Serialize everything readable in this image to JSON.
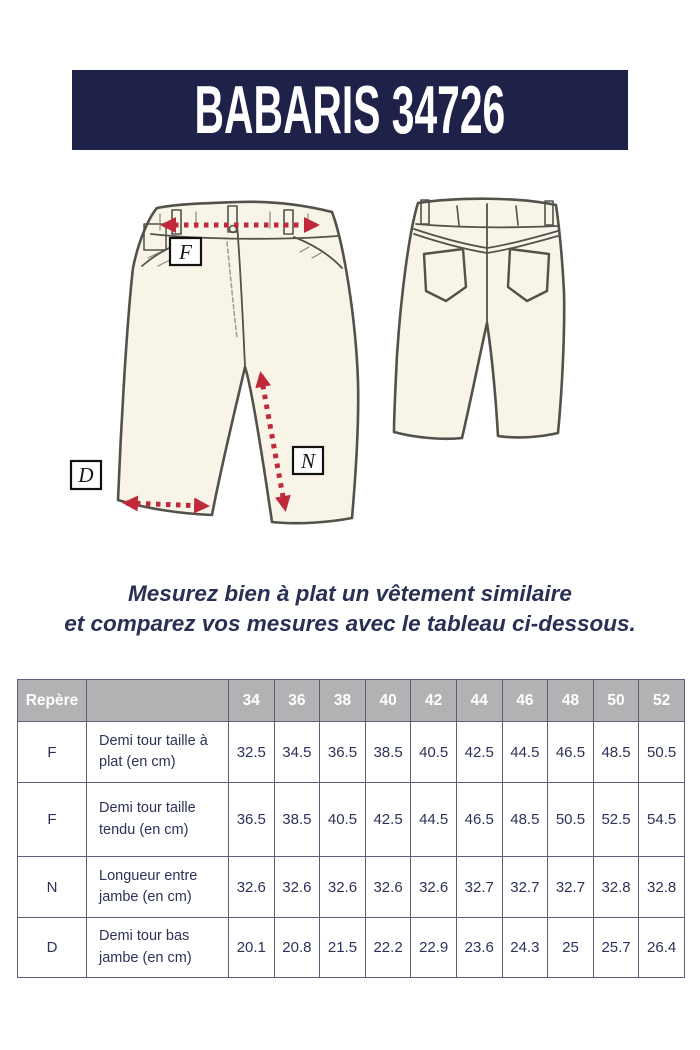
{
  "banner": {
    "title": "BABARIS 34726",
    "bg": "#1e2148",
    "text_color": "#ffffff"
  },
  "diagram": {
    "label_f": "F",
    "label_n": "N",
    "label_d": "D",
    "arrow_color": "#c02939",
    "garment_fill": "#f8f5e8",
    "garment_stroke": "#52514a"
  },
  "instructions": {
    "line1": "Mesurez bien à plat un vêtement similaire",
    "line2": "et comparez vos mesures avec le tableau ci-dessous.",
    "color": "#2a3054"
  },
  "size_table": {
    "corner_label": "Repère",
    "description_header": "",
    "sizes": [
      "34",
      "36",
      "38",
      "40",
      "42",
      "44",
      "46",
      "48",
      "50",
      "52"
    ],
    "rows": [
      {
        "code": "F",
        "label": "Demi tour taille à plat (en cm)",
        "values": [
          "32.5",
          "34.5",
          "36.5",
          "38.5",
          "40.5",
          "42.5",
          "44.5",
          "46.5",
          "48.5",
          "50.5"
        ]
      },
      {
        "code": "F",
        "label": "Demi tour taille tendu (en cm)",
        "values": [
          "36.5",
          "38.5",
          "40.5",
          "42.5",
          "44.5",
          "46.5",
          "48.5",
          "50.5",
          "52.5",
          "54.5"
        ]
      },
      {
        "code": "N",
        "label": "Longueur entre jambe (en cm)",
        "values": [
          "32.6",
          "32.6",
          "32.6",
          "32.6",
          "32.6",
          "32.7",
          "32.7",
          "32.7",
          "32.8",
          "32.8"
        ]
      },
      {
        "code": "D",
        "label": "Demi tour bas jambe (en cm)",
        "values": [
          "20.1",
          "20.8",
          "21.5",
          "22.2",
          "22.9",
          "23.6",
          "24.3",
          "25",
          "25.7",
          "26.4"
        ]
      }
    ],
    "header_bg": "#b2b1b3",
    "border_color": "#5c5f77",
    "text_color": "#2d3258"
  }
}
